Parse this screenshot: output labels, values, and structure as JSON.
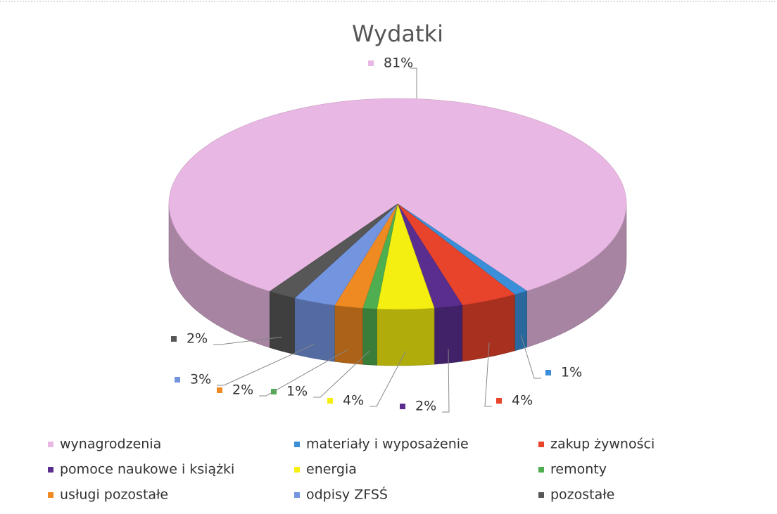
{
  "chart_data": {
    "type": "pie",
    "title": "Wydatki",
    "categories": [
      "wynagrodzenia",
      "materiały i wyposażenie",
      "zakup żywności",
      "pomoce naukowe i książki",
      "energia",
      "remonty",
      "usługi pozostałe",
      "odpisy ZFSŚ",
      "pozostałe"
    ],
    "values": [
      81,
      1,
      4,
      2,
      4,
      1,
      2,
      3,
      2
    ],
    "value_labels": [
      "81%",
      "1%",
      "4%",
      "2%",
      "4%",
      "1%",
      "2%",
      "3%",
      "2%"
    ],
    "colors": [
      "#e9b7e3",
      "#3b8fd9",
      "#e8432b",
      "#5a2e8f",
      "#f4ef10",
      "#4fae4f",
      "#ef8a22",
      "#7394df",
      "#575757"
    ],
    "legend": "bottom"
  }
}
